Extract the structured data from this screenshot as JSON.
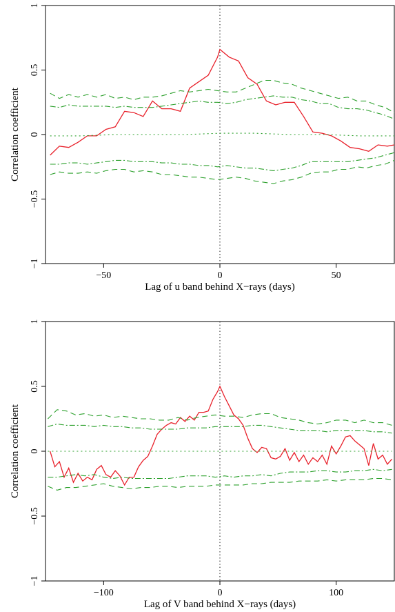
{
  "chart_data": [
    {
      "type": "line",
      "xlabel": "Lag of u band behind X−rays (days)",
      "ylabel": "Correlation coefficient",
      "xlim": [
        -75,
        75
      ],
      "ylim": [
        -1,
        1
      ],
      "xticks": [
        -50,
        0,
        50
      ],
      "xtick_labels": [
        "−50",
        "0",
        "50"
      ],
      "yticks": [
        -1,
        -0.5,
        0,
        0.5,
        1
      ],
      "ytick_labels": [
        "−1",
        "−0.5",
        "0",
        "0.5",
        "1"
      ],
      "zero_lag_marker": 0,
      "series": [
        {
          "style": "solid",
          "color": "#e8202a",
          "x": [
            -73,
            -69,
            -65,
            -61,
            -57,
            -53,
            -49,
            -45,
            -41,
            -37,
            -33,
            -29,
            -25,
            -21,
            -17,
            -13,
            -9,
            -5,
            -1,
            0,
            4,
            8,
            12,
            16,
            20,
            24,
            28,
            32,
            36,
            40,
            44,
            48,
            52,
            56,
            60,
            64,
            68,
            72,
            75
          ],
          "y": [
            -0.16,
            -0.09,
            -0.1,
            -0.06,
            -0.01,
            -0.01,
            0.04,
            0.06,
            0.18,
            0.17,
            0.14,
            0.26,
            0.2,
            0.2,
            0.18,
            0.36,
            0.41,
            0.46,
            0.6,
            0.66,
            0.6,
            0.57,
            0.44,
            0.39,
            0.26,
            0.23,
            0.25,
            0.25,
            0.14,
            0.02,
            0.01,
            -0.01,
            -0.05,
            -0.1,
            -0.11,
            -0.13,
            -0.08,
            -0.09,
            -0.08
          ]
        },
        {
          "style": "dashed",
          "color": "#2ca02c",
          "x": [
            -73,
            -69,
            -65,
            -61,
            -57,
            -53,
            -49,
            -45,
            -41,
            -37,
            -33,
            -29,
            -25,
            -21,
            -17,
            -13,
            -9,
            -5,
            -1,
            3,
            7,
            11,
            15,
            19,
            23,
            27,
            31,
            35,
            39,
            43,
            47,
            51,
            55,
            59,
            63,
            67,
            71,
            75
          ],
          "y": [
            0.32,
            0.28,
            0.31,
            0.29,
            0.31,
            0.29,
            0.31,
            0.28,
            0.29,
            0.27,
            0.29,
            0.29,
            0.3,
            0.32,
            0.34,
            0.33,
            0.34,
            0.35,
            0.34,
            0.33,
            0.33,
            0.36,
            0.39,
            0.42,
            0.42,
            0.4,
            0.39,
            0.36,
            0.34,
            0.32,
            0.3,
            0.28,
            0.29,
            0.26,
            0.26,
            0.23,
            0.21,
            0.17
          ]
        },
        {
          "style": "dashdot",
          "color": "#2ca02c",
          "x": [
            -73,
            -69,
            -65,
            -61,
            -57,
            -53,
            -49,
            -45,
            -41,
            -37,
            -33,
            -29,
            -25,
            -21,
            -17,
            -13,
            -9,
            -5,
            -1,
            3,
            7,
            11,
            15,
            19,
            23,
            27,
            31,
            35,
            39,
            43,
            47,
            51,
            55,
            59,
            63,
            67,
            71,
            75
          ],
          "y": [
            0.22,
            0.21,
            0.23,
            0.22,
            0.22,
            0.22,
            0.22,
            0.21,
            0.22,
            0.21,
            0.21,
            0.21,
            0.22,
            0.23,
            0.24,
            0.25,
            0.26,
            0.25,
            0.25,
            0.24,
            0.25,
            0.27,
            0.28,
            0.29,
            0.3,
            0.29,
            0.29,
            0.27,
            0.26,
            0.24,
            0.24,
            0.21,
            0.2,
            0.2,
            0.19,
            0.17,
            0.15,
            0.12
          ]
        },
        {
          "style": "dotted",
          "color": "#2ca02c",
          "x": [
            -73,
            -60,
            -45,
            -30,
            -15,
            0,
            15,
            30,
            45,
            60,
            75
          ],
          "y": [
            -0.01,
            -0.01,
            0.0,
            0.0,
            0.0,
            0.01,
            0.01,
            0.0,
            0.0,
            -0.01,
            -0.01
          ]
        },
        {
          "style": "dashdot",
          "color": "#2ca02c",
          "x": [
            -73,
            -69,
            -65,
            -61,
            -57,
            -53,
            -49,
            -45,
            -41,
            -37,
            -33,
            -29,
            -25,
            -21,
            -17,
            -13,
            -9,
            -5,
            -1,
            3,
            7,
            11,
            15,
            19,
            23,
            27,
            31,
            35,
            39,
            43,
            47,
            51,
            55,
            59,
            63,
            67,
            71,
            75
          ],
          "y": [
            -0.23,
            -0.23,
            -0.22,
            -0.22,
            -0.23,
            -0.22,
            -0.21,
            -0.2,
            -0.2,
            -0.21,
            -0.21,
            -0.21,
            -0.22,
            -0.22,
            -0.23,
            -0.23,
            -0.24,
            -0.24,
            -0.25,
            -0.24,
            -0.25,
            -0.26,
            -0.26,
            -0.27,
            -0.28,
            -0.27,
            -0.26,
            -0.24,
            -0.21,
            -0.21,
            -0.21,
            -0.21,
            -0.21,
            -0.2,
            -0.19,
            -0.18,
            -0.16,
            -0.14
          ]
        },
        {
          "style": "dashed",
          "color": "#2ca02c",
          "x": [
            -73,
            -69,
            -65,
            -61,
            -57,
            -53,
            -49,
            -45,
            -41,
            -37,
            -33,
            -29,
            -25,
            -21,
            -17,
            -13,
            -9,
            -5,
            -1,
            3,
            7,
            11,
            15,
            19,
            23,
            27,
            31,
            35,
            39,
            43,
            47,
            51,
            55,
            59,
            63,
            67,
            71,
            75
          ],
          "y": [
            -0.31,
            -0.29,
            -0.3,
            -0.3,
            -0.29,
            -0.3,
            -0.28,
            -0.27,
            -0.27,
            -0.29,
            -0.28,
            -0.29,
            -0.31,
            -0.31,
            -0.32,
            -0.33,
            -0.33,
            -0.34,
            -0.35,
            -0.34,
            -0.33,
            -0.34,
            -0.36,
            -0.37,
            -0.38,
            -0.36,
            -0.35,
            -0.33,
            -0.3,
            -0.29,
            -0.29,
            -0.27,
            -0.27,
            -0.25,
            -0.26,
            -0.24,
            -0.23,
            -0.2
          ]
        }
      ]
    },
    {
      "type": "line",
      "xlabel": "Lag of V band behind X−rays (days)",
      "ylabel": "Correlation coefficient",
      "xlim": [
        -150,
        150
      ],
      "ylim": [
        -1,
        1
      ],
      "xticks": [
        -100,
        0,
        100
      ],
      "xtick_labels": [
        "−100",
        "0",
        "100"
      ],
      "yticks": [
        -1,
        -0.5,
        0,
        0.5,
        1
      ],
      "ytick_labels": [
        "−1",
        "−0.5",
        "0",
        "0.5",
        "1"
      ],
      "zero_lag_marker": 0,
      "series": [
        {
          "style": "solid",
          "color": "#e8202a",
          "x": [
            -146,
            -142,
            -138,
            -134,
            -130,
            -126,
            -122,
            -118,
            -114,
            -110,
            -106,
            -102,
            -98,
            -94,
            -90,
            -86,
            -82,
            -78,
            -74,
            -70,
            -66,
            -62,
            -58,
            -54,
            -50,
            -46,
            -42,
            -38,
            -34,
            -30,
            -26,
            -22,
            -18,
            -14,
            -10,
            -6,
            -2,
            0,
            4,
            8,
            12,
            16,
            20,
            24,
            28,
            32,
            36,
            40,
            44,
            48,
            52,
            56,
            60,
            64,
            68,
            72,
            76,
            80,
            84,
            88,
            92,
            96,
            100,
            104,
            108,
            112,
            116,
            120,
            124,
            128,
            132,
            136,
            140,
            144,
            148
          ],
          "y": [
            0.0,
            -0.12,
            -0.08,
            -0.2,
            -0.13,
            -0.24,
            -0.17,
            -0.23,
            -0.2,
            -0.22,
            -0.14,
            -0.11,
            -0.18,
            -0.2,
            -0.15,
            -0.19,
            -0.26,
            -0.2,
            -0.2,
            -0.12,
            -0.07,
            -0.04,
            0.04,
            0.13,
            0.17,
            0.2,
            0.22,
            0.21,
            0.26,
            0.23,
            0.27,
            0.24,
            0.3,
            0.3,
            0.31,
            0.4,
            0.46,
            0.5,
            0.42,
            0.35,
            0.28,
            0.25,
            0.2,
            0.1,
            0.02,
            -0.01,
            0.03,
            0.02,
            -0.05,
            -0.06,
            -0.04,
            0.02,
            -0.07,
            -0.01,
            -0.08,
            -0.03,
            -0.1,
            -0.05,
            -0.08,
            -0.03,
            -0.1,
            0.04,
            -0.02,
            0.04,
            0.11,
            0.12,
            0.08,
            0.05,
            0.02,
            -0.11,
            0.06,
            -0.06,
            -0.03,
            -0.1,
            -0.06
          ]
        },
        {
          "style": "dashed",
          "color": "#2ca02c",
          "x": [
            -148,
            -140,
            -132,
            -124,
            -116,
            -108,
            -100,
            -92,
            -84,
            -76,
            -68,
            -60,
            -52,
            -44,
            -36,
            -28,
            -20,
            -12,
            -4,
            4,
            12,
            20,
            28,
            36,
            44,
            52,
            60,
            68,
            76,
            84,
            92,
            100,
            108,
            116,
            124,
            132,
            140,
            148
          ],
          "y": [
            0.25,
            0.32,
            0.31,
            0.28,
            0.29,
            0.27,
            0.28,
            0.26,
            0.27,
            0.26,
            0.25,
            0.25,
            0.24,
            0.24,
            0.26,
            0.24,
            0.26,
            0.27,
            0.28,
            0.27,
            0.27,
            0.26,
            0.28,
            0.29,
            0.29,
            0.26,
            0.25,
            0.24,
            0.22,
            0.21,
            0.22,
            0.24,
            0.24,
            0.22,
            0.24,
            0.22,
            0.22,
            0.2
          ]
        },
        {
          "style": "dashdot",
          "color": "#2ca02c",
          "x": [
            -148,
            -140,
            -132,
            -124,
            -116,
            -108,
            -100,
            -92,
            -84,
            -76,
            -68,
            -60,
            -52,
            -44,
            -36,
            -28,
            -20,
            -12,
            -4,
            4,
            12,
            20,
            28,
            36,
            44,
            52,
            60,
            68,
            76,
            84,
            92,
            100,
            108,
            116,
            124,
            132,
            140,
            148
          ],
          "y": [
            0.19,
            0.21,
            0.2,
            0.2,
            0.2,
            0.19,
            0.2,
            0.19,
            0.19,
            0.18,
            0.18,
            0.17,
            0.17,
            0.17,
            0.17,
            0.18,
            0.18,
            0.18,
            0.19,
            0.19,
            0.19,
            0.19,
            0.2,
            0.2,
            0.19,
            0.18,
            0.17,
            0.16,
            0.16,
            0.16,
            0.15,
            0.16,
            0.16,
            0.16,
            0.16,
            0.15,
            0.15,
            0.14
          ]
        },
        {
          "style": "dotted",
          "color": "#2ca02c",
          "x": [
            -148,
            -120,
            -90,
            -60,
            -30,
            0,
            30,
            60,
            90,
            120,
            148
          ],
          "y": [
            0.0,
            0.0,
            0.0,
            0.0,
            0.0,
            0.0,
            0.0,
            0.0,
            0.0,
            0.0,
            0.0
          ]
        },
        {
          "style": "dashdot",
          "color": "#2ca02c",
          "x": [
            -148,
            -140,
            -132,
            -124,
            -116,
            -108,
            -100,
            -92,
            -84,
            -76,
            -68,
            -60,
            -52,
            -44,
            -36,
            -28,
            -20,
            -12,
            -4,
            4,
            12,
            20,
            28,
            36,
            44,
            52,
            60,
            68,
            76,
            84,
            92,
            100,
            108,
            116,
            124,
            132,
            140,
            148
          ],
          "y": [
            -0.2,
            -0.2,
            -0.19,
            -0.18,
            -0.19,
            -0.18,
            -0.2,
            -0.21,
            -0.2,
            -0.21,
            -0.21,
            -0.21,
            -0.21,
            -0.21,
            -0.2,
            -0.19,
            -0.19,
            -0.19,
            -0.2,
            -0.19,
            -0.2,
            -0.19,
            -0.19,
            -0.18,
            -0.19,
            -0.17,
            -0.16,
            -0.16,
            -0.16,
            -0.15,
            -0.15,
            -0.16,
            -0.16,
            -0.15,
            -0.15,
            -0.14,
            -0.15,
            -0.14
          ]
        },
        {
          "style": "dashed",
          "color": "#2ca02c",
          "x": [
            -148,
            -140,
            -132,
            -124,
            -116,
            -108,
            -100,
            -92,
            -84,
            -76,
            -68,
            -60,
            -52,
            -44,
            -36,
            -28,
            -20,
            -12,
            -4,
            4,
            12,
            20,
            28,
            36,
            44,
            52,
            60,
            68,
            76,
            84,
            92,
            100,
            108,
            116,
            124,
            132,
            140,
            148
          ],
          "y": [
            -0.27,
            -0.3,
            -0.28,
            -0.28,
            -0.27,
            -0.26,
            -0.25,
            -0.27,
            -0.28,
            -0.29,
            -0.28,
            -0.28,
            -0.27,
            -0.27,
            -0.28,
            -0.27,
            -0.27,
            -0.27,
            -0.26,
            -0.26,
            -0.26,
            -0.26,
            -0.25,
            -0.25,
            -0.24,
            -0.24,
            -0.24,
            -0.23,
            -0.23,
            -0.23,
            -0.22,
            -0.23,
            -0.22,
            -0.22,
            -0.22,
            -0.21,
            -0.21,
            -0.22
          ]
        }
      ]
    }
  ]
}
